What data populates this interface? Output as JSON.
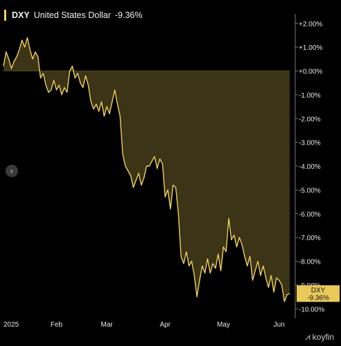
{
  "legend": {
    "symbol": "DXY",
    "name": "United States Dollar",
    "change": "-9.36%"
  },
  "badge": {
    "symbol": "DXY",
    "value": "-9.36%"
  },
  "watermark": {
    "text": "koyfin"
  },
  "colors": {
    "line": "#f0d060",
    "fill": "#3b3416",
    "background": "#000000",
    "badge_bg": "#e8c95a",
    "grid": "#5a5a5a"
  },
  "chart_data": {
    "type": "area",
    "title": "",
    "series": [
      {
        "name": "DXY",
        "unit": "% change",
        "values": [
          0.2,
          0.8,
          0.5,
          0.1,
          0.4,
          0.6,
          0.9,
          1.3,
          1.0,
          1.4,
          0.9,
          0.5,
          0.8,
          0.6,
          -0.3,
          -0.1,
          -0.6,
          -0.9,
          -0.8,
          -0.4,
          -0.8,
          -0.6,
          -1.0,
          -0.7,
          -0.9,
          0.0,
          0.2,
          -0.3,
          -0.1,
          -0.5,
          -0.7,
          -0.2,
          -0.6,
          -1.3,
          -1.6,
          -1.4,
          -1.7,
          -1.3,
          -1.9,
          -1.5,
          -1.8,
          -1.3,
          -0.8,
          -1.4,
          -1.9,
          -3.5,
          -4.0,
          -4.2,
          -4.4,
          -4.9,
          -4.6,
          -4.3,
          -4.8,
          -4.5,
          -4.0,
          -4.0,
          -3.8,
          -3.6,
          -4.1,
          -3.7,
          -3.9,
          -5.3,
          -5.0,
          -5.8,
          -4.8,
          -4.9,
          -6.0,
          -7.8,
          -8.1,
          -7.6,
          -8.2,
          -8.0,
          -8.6,
          -9.5,
          -8.8,
          -8.2,
          -8.5,
          -7.9,
          -8.5,
          -8.1,
          -8.3,
          -7.7,
          -8.4,
          -7.4,
          -7.6,
          -6.2,
          -7.1,
          -6.9,
          -7.4,
          -7.0,
          -7.3,
          -7.8,
          -8.2,
          -7.8,
          -8.8,
          -8.4,
          -8.0,
          -8.6,
          -8.2,
          -8.7,
          -9.1,
          -8.6,
          -9.3,
          -8.7,
          -8.8,
          -9.0,
          -9.7,
          -9.4,
          -9.36
        ]
      }
    ],
    "x_tick_labels": [
      "2025",
      "Feb",
      "Mar",
      "Apr",
      "May",
      "Jun"
    ],
    "x_tick_index": [
      0,
      20,
      39,
      61,
      83,
      104
    ],
    "y_ticks": [
      2,
      1,
      0,
      -1,
      -2,
      -3,
      -4,
      -5,
      -6,
      -7,
      -8,
      -9,
      -10
    ],
    "y_tick_labels": [
      "+2.00%",
      "+1.00%",
      "+0.00%",
      "-1.00%",
      "-2.00%",
      "-3.00%",
      "-4.00%",
      "-5.00%",
      "-6.00%",
      "-7.00%",
      "-8.00%",
      "-9.00%",
      "-10.00%"
    ],
    "ylim": [
      -10.4,
      2.4
    ],
    "baseline": 0,
    "axis_side": "right",
    "grid": false,
    "xlabel": "",
    "ylabel": ""
  }
}
